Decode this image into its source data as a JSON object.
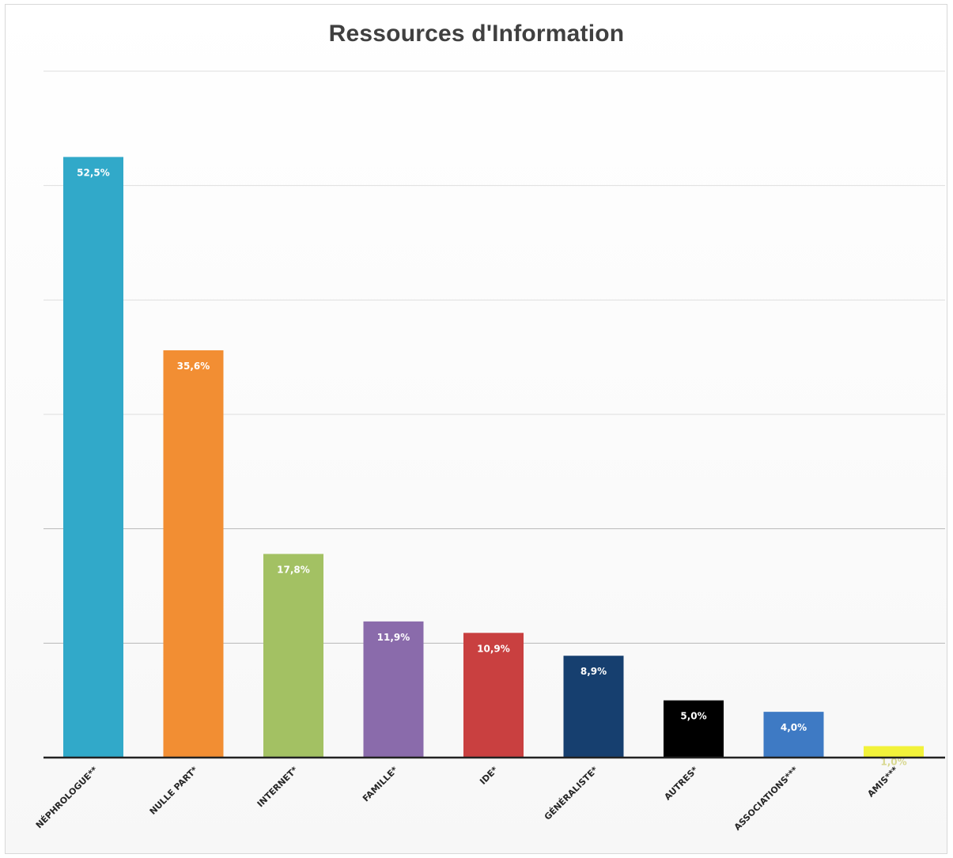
{
  "chart_data": {
    "type": "bar",
    "title": "Ressources d'Information",
    "xlabel": "",
    "ylabel": "",
    "ylim": [
      0,
      60
    ],
    "grid": true,
    "categories": [
      "NÉPHROLOGUE**",
      "NULLE PART*",
      "INTERNET*",
      "FAMILLE*",
      "IDE*",
      "GÉNÉRALISTE*",
      "AUTRES*",
      "ASSOCIATIONS***",
      "AMIS***"
    ],
    "values": [
      52.5,
      35.6,
      17.8,
      11.9,
      10.9,
      8.9,
      5.0,
      4.0,
      1.0
    ],
    "value_labels": [
      "52,5%",
      "35,6%",
      "17,8%",
      "11,9%",
      "10,9%",
      "8,9%",
      "5,0%",
      "4,0%",
      "1,0%"
    ],
    "colors": [
      "#31A9C9",
      "#F28E33",
      "#A3C163",
      "#8A6BAB",
      "#C94040",
      "#163F6F",
      "#000000",
      "#3E7AC4",
      "#F2F23A"
    ],
    "label_colors": [
      "#ffffff",
      "#ffffff",
      "#ffffff",
      "#ffffff",
      "#ffffff",
      "#ffffff",
      "#ffffff",
      "#ffffff",
      "#d8d890"
    ]
  }
}
